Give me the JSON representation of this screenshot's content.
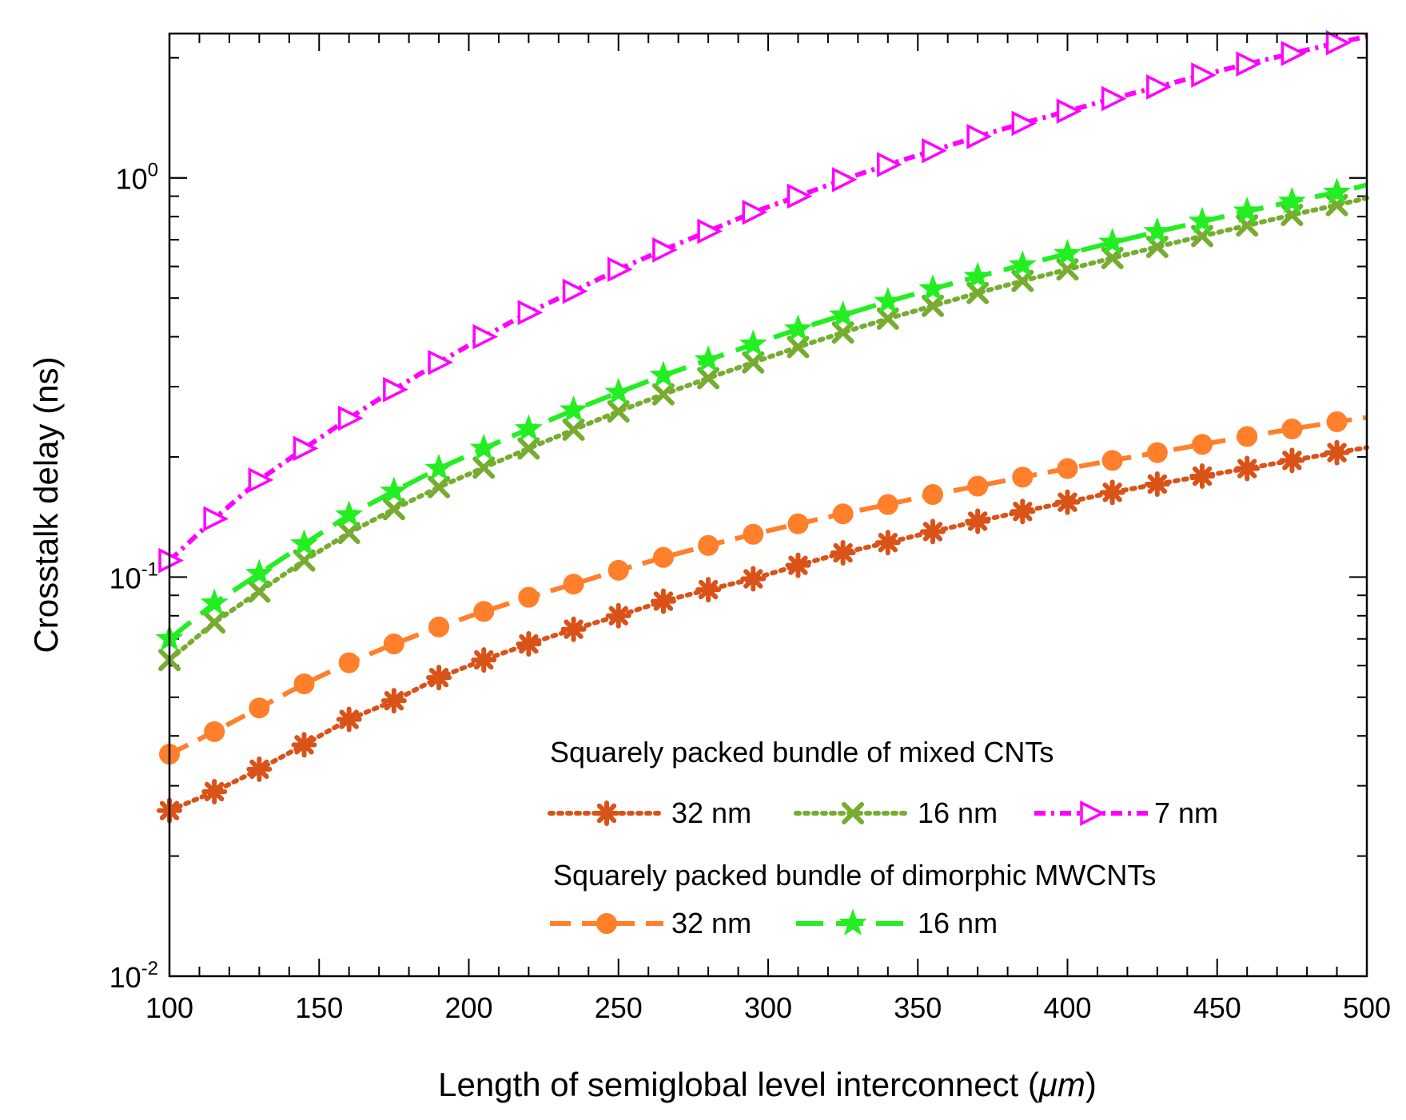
{
  "chart_data": {
    "type": "line",
    "xlabel": "Length of semiglobal level interconnect (μm)",
    "xlabel_main": "Length of semiglobal level interconnect (",
    "xlabel_unit": "μm",
    "xlabel_close": ")",
    "ylabel": "Crosstalk delay (ns)",
    "xlim": [
      100,
      500
    ],
    "ylim": [
      0.01,
      2.3
    ],
    "yscale": "log",
    "x_ticks": [
      "100",
      "150",
      "200",
      "250",
      "300",
      "350",
      "400",
      "450",
      "500"
    ],
    "x_tick_values": [
      100,
      150,
      200,
      250,
      300,
      350,
      400,
      450,
      500
    ],
    "y_ticks": [
      {
        "base": "10",
        "exp": "-2",
        "value": 0.01
      },
      {
        "base": "10",
        "exp": "-1",
        "value": 0.1
      },
      {
        "base": "10",
        "exp": "0",
        "value": 1
      }
    ],
    "x": [
      100,
      115,
      130,
      145,
      160,
      175,
      190,
      205,
      220,
      235,
      250,
      265,
      280,
      295,
      310,
      325,
      340,
      355,
      370,
      385,
      400,
      415,
      430,
      445,
      460,
      475,
      490,
      500
    ],
    "legend": {
      "group1_title": "Squarely packed bundle of mixed CNTs",
      "group2_title": "Squarely packed bundle of dimorphic MWCNTs",
      "group1_labels": [
        "32 nm",
        "16 nm",
        "7 nm"
      ],
      "group2_labels": [
        "32 nm",
        "16 nm"
      ]
    },
    "series": [
      {
        "name": "Mixed CNTs 32 nm",
        "label": "32 nm",
        "group": "mixed",
        "color": "#d95319",
        "marker": "asterisk",
        "dash": "dot",
        "values": [
          0.026,
          0.029,
          0.033,
          0.038,
          0.044,
          0.049,
          0.056,
          0.062,
          0.068,
          0.074,
          0.08,
          0.087,
          0.093,
          0.099,
          0.107,
          0.115,
          0.122,
          0.13,
          0.138,
          0.146,
          0.154,
          0.163,
          0.171,
          0.179,
          0.187,
          0.196,
          0.205,
          0.211
        ]
      },
      {
        "name": "Mixed CNTs 16 nm",
        "label": "16 nm",
        "group": "mixed",
        "color": "#77ac30",
        "marker": "x",
        "dash": "dot",
        "values": [
          0.062,
          0.077,
          0.092,
          0.11,
          0.129,
          0.148,
          0.168,
          0.188,
          0.21,
          0.234,
          0.26,
          0.287,
          0.315,
          0.345,
          0.377,
          0.41,
          0.444,
          0.478,
          0.515,
          0.552,
          0.59,
          0.63,
          0.672,
          0.715,
          0.76,
          0.808,
          0.855,
          0.89
        ]
      },
      {
        "name": "Mixed CNTs 7 nm",
        "label": "7 nm",
        "group": "mixed",
        "color": "#ff00ff",
        "marker": "triangle-right",
        "dash": "dashdot",
        "values": [
          0.11,
          0.14,
          0.175,
          0.21,
          0.25,
          0.295,
          0.345,
          0.4,
          0.46,
          0.52,
          0.59,
          0.66,
          0.735,
          0.82,
          0.9,
          0.99,
          1.08,
          1.17,
          1.27,
          1.37,
          1.47,
          1.58,
          1.69,
          1.81,
          1.93,
          2.05,
          2.18,
          2.26
        ]
      },
      {
        "name": "Dimorphic MWCNTs 32 nm",
        "label": "32 nm",
        "group": "dimorphic",
        "color": "#ff7f2a",
        "marker": "circle",
        "dash": "dash",
        "values": [
          0.036,
          0.041,
          0.047,
          0.054,
          0.061,
          0.068,
          0.075,
          0.082,
          0.089,
          0.096,
          0.104,
          0.112,
          0.12,
          0.128,
          0.136,
          0.144,
          0.152,
          0.161,
          0.169,
          0.178,
          0.187,
          0.196,
          0.205,
          0.215,
          0.225,
          0.235,
          0.245,
          0.251
        ]
      },
      {
        "name": "Dimorphic MWCNTs 16 nm",
        "label": "16 nm",
        "group": "dimorphic",
        "color": "#22ee22",
        "marker": "star",
        "dash": "longdash",
        "values": [
          0.07,
          0.086,
          0.102,
          0.121,
          0.143,
          0.164,
          0.187,
          0.21,
          0.235,
          0.262,
          0.29,
          0.32,
          0.35,
          0.383,
          0.418,
          0.453,
          0.49,
          0.527,
          0.566,
          0.605,
          0.646,
          0.689,
          0.733,
          0.778,
          0.825,
          0.873,
          0.92,
          0.96
        ]
      }
    ]
  }
}
